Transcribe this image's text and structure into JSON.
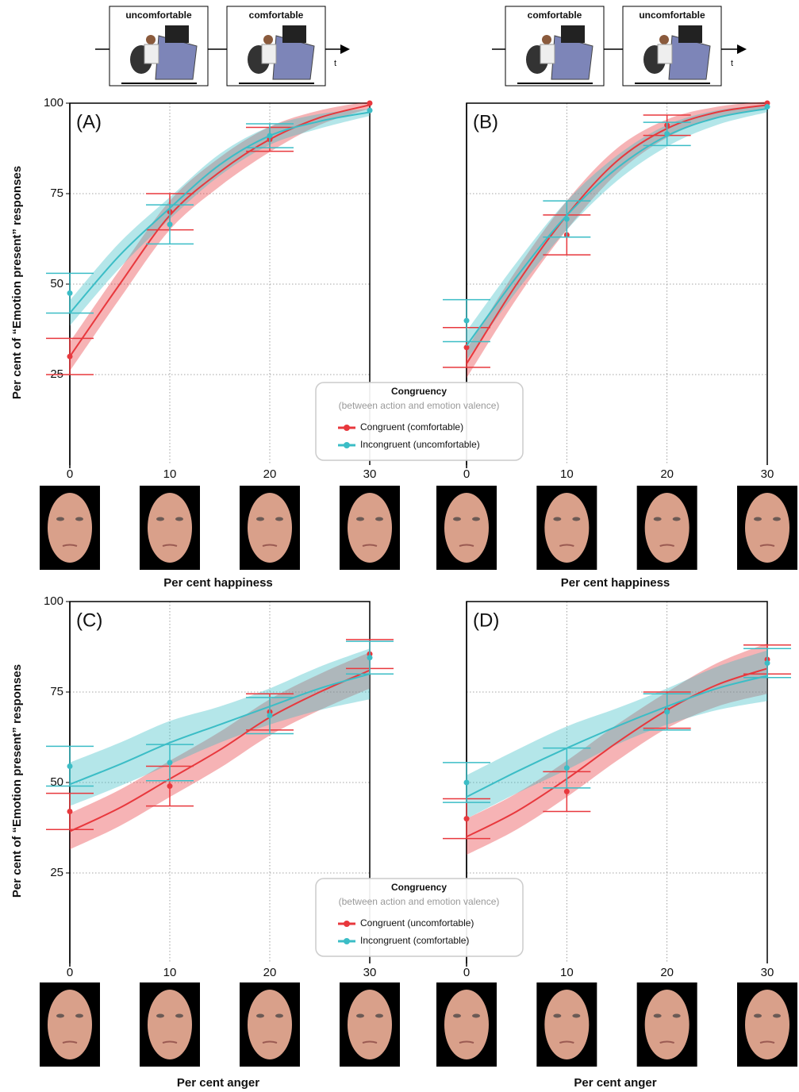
{
  "diagrams": [
    {
      "labels": [
        "uncomfortable",
        "comfortable"
      ],
      "axis": "t"
    },
    {
      "labels": [
        "comfortable",
        "uncomfortable"
      ],
      "axis": "t"
    }
  ],
  "chart_data": [
    {
      "type": "line",
      "label": "(A)",
      "x": [
        0,
        10,
        20,
        30
      ],
      "fit_x": [
        0,
        5,
        10,
        15,
        20,
        25,
        30
      ],
      "xlim": [
        0,
        30
      ],
      "ylim": [
        0,
        100
      ],
      "xticks": [
        0,
        10,
        20,
        30
      ],
      "yticks": [
        25,
        50,
        75,
        100
      ],
      "grid": true,
      "x_label": "Per cent happiness",
      "y_label": "Per cent of “Emotion present” responses",
      "legend_title": "Congruency",
      "legend_subtitle": "(between action and emotion valence)",
      "series": [
        {
          "name": "Congruent (comfortable)",
          "color": "#e8383d",
          "values": [
            30,
            70,
            90,
            100
          ],
          "errors": [
            5,
            5,
            3.3,
            0
          ],
          "fit": [
            30,
            50,
            69,
            81,
            90,
            96,
            99.5
          ],
          "fit_band": [
            4,
            4,
            4,
            4,
            3.5,
            2,
            1
          ]
        },
        {
          "name": "Incongruent (uncomfortable)",
          "color": "#3bbdc6",
          "values": [
            47.5,
            66.5,
            91,
            98
          ],
          "errors": [
            5.5,
            5.4,
            3.3,
            0
          ],
          "fit": [
            42,
            58,
            71,
            83,
            91,
            95,
            97.5
          ],
          "fit_band": [
            3.5,
            3.5,
            3,
            3,
            2.5,
            2,
            1
          ]
        }
      ]
    },
    {
      "type": "line",
      "label": "(B)",
      "x": [
        0,
        10,
        20,
        30
      ],
      "fit_x": [
        0,
        5,
        10,
        15,
        20,
        25,
        30
      ],
      "xlim": [
        0,
        30
      ],
      "ylim": [
        0,
        100
      ],
      "xticks": [
        0,
        10,
        20,
        30
      ],
      "yticks": [
        25,
        50,
        75,
        100
      ],
      "grid": true,
      "x_label": "Per cent happiness",
      "series": [
        {
          "color": "#e8383d",
          "values": [
            32.5,
            63.6,
            93.9,
            100
          ],
          "errors": [
            5.5,
            5.5,
            2.8,
            0
          ],
          "fit": [
            28,
            50,
            69,
            84,
            93,
            97.5,
            99.5
          ],
          "fit_band": [
            4,
            4,
            4,
            3.5,
            2.5,
            1.5,
            1
          ]
        },
        {
          "color": "#3bbdc6",
          "values": [
            39.9,
            68,
            91.5,
            99
          ],
          "errors": [
            5.8,
            5,
            3.2,
            0
          ],
          "fit": [
            33,
            52,
            69,
            82,
            91,
            96,
            98.5
          ],
          "fit_band": [
            4,
            4,
            4,
            3.5,
            3,
            2,
            1
          ]
        }
      ]
    },
    {
      "type": "line",
      "label": "(C)",
      "x": [
        0,
        10,
        20,
        30
      ],
      "fit_x": [
        0,
        5,
        10,
        15,
        20,
        25,
        30
      ],
      "xlim": [
        0,
        30
      ],
      "ylim": [
        0,
        100
      ],
      "xticks": [
        0,
        10,
        20,
        30
      ],
      "yticks": [
        25,
        50,
        75,
        100
      ],
      "grid": true,
      "x_label": "Per cent anger",
      "y_label": "Per cent of “Emotion present” responses",
      "legend_title": "Congruency",
      "legend_subtitle": "(between action and emotion valence)",
      "series": [
        {
          "name": "Congruent (uncomfortable)",
          "color": "#e8383d",
          "values": [
            42,
            49,
            69.5,
            85.5
          ],
          "errors": [
            5,
            5.5,
            5,
            4
          ],
          "fit": [
            36.5,
            43,
            51,
            59,
            68,
            75,
            81
          ],
          "fit_band": [
            5,
            5,
            5,
            5,
            5,
            5,
            5
          ]
        },
        {
          "name": "Incongruent (comfortable)",
          "color": "#3bbdc6",
          "values": [
            54.5,
            55.5,
            68.5,
            84.5
          ],
          "errors": [
            5.5,
            5,
            5,
            4.5
          ],
          "fit": [
            49.5,
            55,
            61,
            66,
            71,
            76,
            80
          ],
          "fit_band": [
            6,
            6,
            6,
            5,
            5,
            6,
            7
          ]
        }
      ]
    },
    {
      "type": "line",
      "label": "(D)",
      "x": [
        0,
        10,
        20,
        30
      ],
      "fit_x": [
        0,
        5,
        10,
        15,
        20,
        25,
        30
      ],
      "xlim": [
        0,
        30
      ],
      "ylim": [
        0,
        100
      ],
      "xticks": [
        0,
        10,
        20,
        30
      ],
      "yticks": [
        25,
        50,
        75,
        100
      ],
      "grid": true,
      "x_label": "Per cent anger",
      "series": [
        {
          "color": "#e8383d",
          "values": [
            40,
            47.5,
            70,
            84
          ],
          "errors": [
            5.5,
            5.5,
            5,
            4
          ],
          "fit": [
            35,
            42,
            51,
            61,
            70,
            77,
            81.5
          ],
          "fit_band": [
            5,
            5,
            5,
            5,
            5,
            6,
            7
          ]
        },
        {
          "color": "#3bbdc6",
          "values": [
            50,
            54,
            69.5,
            83
          ],
          "errors": [
            5.5,
            5.5,
            5,
            4
          ],
          "fit": [
            46,
            53,
            59.5,
            65.5,
            71,
            76,
            79.5
          ],
          "fit_band": [
            6,
            6,
            6,
            5,
            5,
            6,
            7
          ]
        }
      ]
    }
  ]
}
